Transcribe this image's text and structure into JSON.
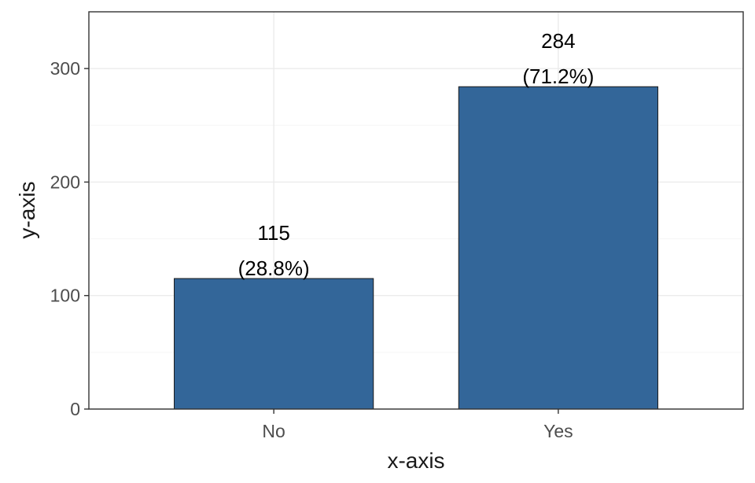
{
  "chart_data": {
    "type": "bar",
    "categories": [
      "No",
      "Yes"
    ],
    "values": [
      115,
      284
    ],
    "value_labels": [
      "115",
      "284"
    ],
    "percent_labels": [
      "(28.8%)",
      "(71.2%)"
    ],
    "xlabel": "x-axis",
    "ylabel": "y-axis",
    "ylim": [
      0,
      350
    ],
    "yticks": [
      0,
      100,
      200,
      300
    ],
    "ytick_labels": [
      "0",
      "100",
      "200",
      "300"
    ],
    "grid": true,
    "legend": "none",
    "colors": {
      "bar": "#336699",
      "bar_border": "#1a1a1a",
      "grid_major": "#ebebeb",
      "grid_minor": "#f5f5f5",
      "panel_border": "#333333"
    }
  }
}
